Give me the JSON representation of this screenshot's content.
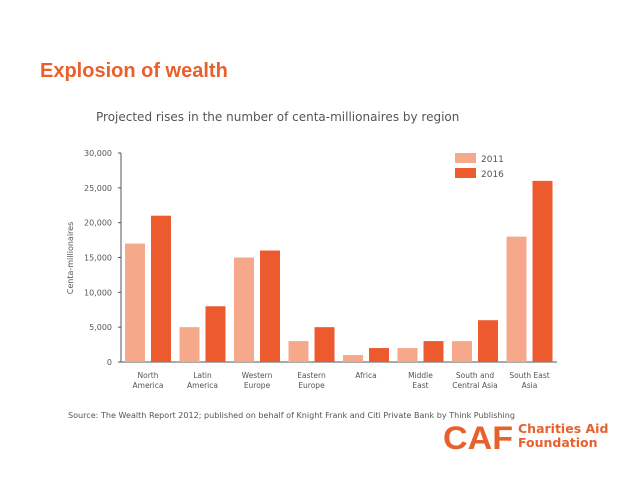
{
  "slide": {
    "title": "Explosion of wealth",
    "brand": {
      "mark": "CAF",
      "name_line1": "Charities Aid",
      "name_line2": "Foundation"
    }
  },
  "colors": {
    "title": "#e8602c",
    "s2011": "#f6a98a",
    "s2016": "#ec5a2e",
    "axis": "#555555",
    "text": "#555555"
  },
  "chart_data": {
    "type": "bar",
    "title": "Projected rises in the number of centa-millionaires by region",
    "ylabel": "Centa-millionaires",
    "xlabel": "",
    "ylim": [
      0,
      30000
    ],
    "yticks": [
      {
        "value": 0,
        "label": "0"
      },
      {
        "value": 5000,
        "label": "5,000"
      },
      {
        "value": 10000,
        "label": "10,000"
      },
      {
        "value": 15000,
        "label": "15,000"
      },
      {
        "value": 20000,
        "label": "20,000"
      },
      {
        "value": 25000,
        "label": "25,000"
      },
      {
        "value": 30000,
        "label": "30,000"
      }
    ],
    "categories": [
      [
        "North",
        "America"
      ],
      [
        "Latin",
        "America"
      ],
      [
        "Western",
        "Europe"
      ],
      [
        "Eastern",
        "Europe"
      ],
      [
        "Africa"
      ],
      [
        "Middle",
        "East"
      ],
      [
        "South and",
        "Central Asia"
      ],
      [
        "South East",
        "Asia"
      ]
    ],
    "series": [
      {
        "name": "2011",
        "color": "#f6a98a",
        "values": [
          17000,
          5000,
          15000,
          3000,
          1000,
          2000,
          3000,
          18000
        ]
      },
      {
        "name": "2016",
        "color": "#ec5a2e",
        "values": [
          21000,
          8000,
          16000,
          5000,
          2000,
          3000,
          6000,
          26000
        ]
      }
    ],
    "legend_position": "top-right",
    "grid": false,
    "source": "Source: The Wealth Report 2012; published on behalf of Knight Frank and Citi Private Bank by Think Publishing"
  }
}
